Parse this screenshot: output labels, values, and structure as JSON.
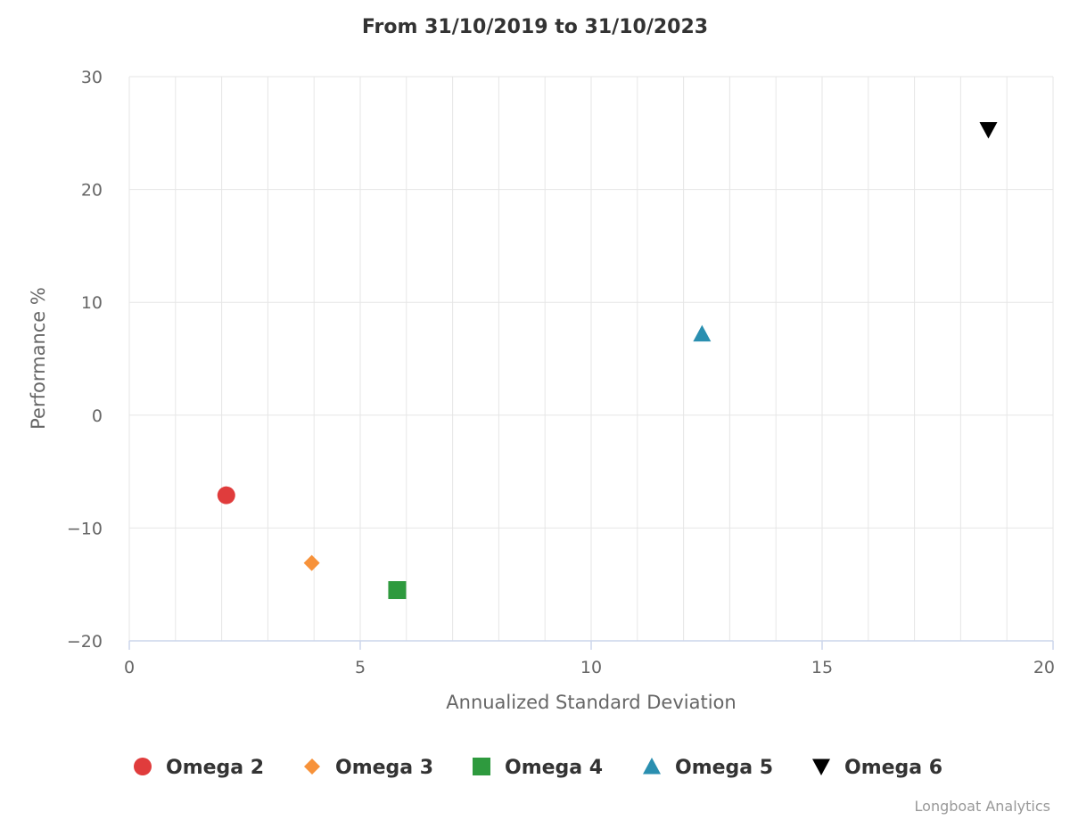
{
  "chart_data": {
    "type": "scatter",
    "title": "From 31/10/2019 to 31/10/2023",
    "xlabel": "Annualized Standard Deviation",
    "ylabel": "Performance %",
    "xlim": [
      0,
      20
    ],
    "ylim": [
      -20,
      30
    ],
    "x_major_ticks": [
      0,
      5,
      10,
      15,
      20
    ],
    "x_minor_step": 1,
    "y_ticks": [
      -20,
      -10,
      0,
      10,
      20,
      30
    ],
    "grid": true,
    "legend_position": "bottom",
    "series": [
      {
        "name": "Omega 2",
        "marker": "circle",
        "color": "#e03c3c",
        "points": [
          {
            "x": 2.1,
            "y": -7.1
          }
        ]
      },
      {
        "name": "Omega 3",
        "marker": "diamond",
        "color": "#f7923a",
        "points": [
          {
            "x": 3.95,
            "y": -13.1
          }
        ]
      },
      {
        "name": "Omega 4",
        "marker": "square",
        "color": "#2e9a3e",
        "points": [
          {
            "x": 5.8,
            "y": -15.5
          }
        ]
      },
      {
        "name": "Omega 5",
        "marker": "triangle",
        "color": "#2a8fb0",
        "points": [
          {
            "x": 12.4,
            "y": 7.2
          }
        ]
      },
      {
        "name": "Omega 6",
        "marker": "triangle-down",
        "color": "#000000",
        "points": [
          {
            "x": 18.6,
            "y": 25.3
          }
        ]
      }
    ],
    "credits": "Longboat Analytics"
  }
}
